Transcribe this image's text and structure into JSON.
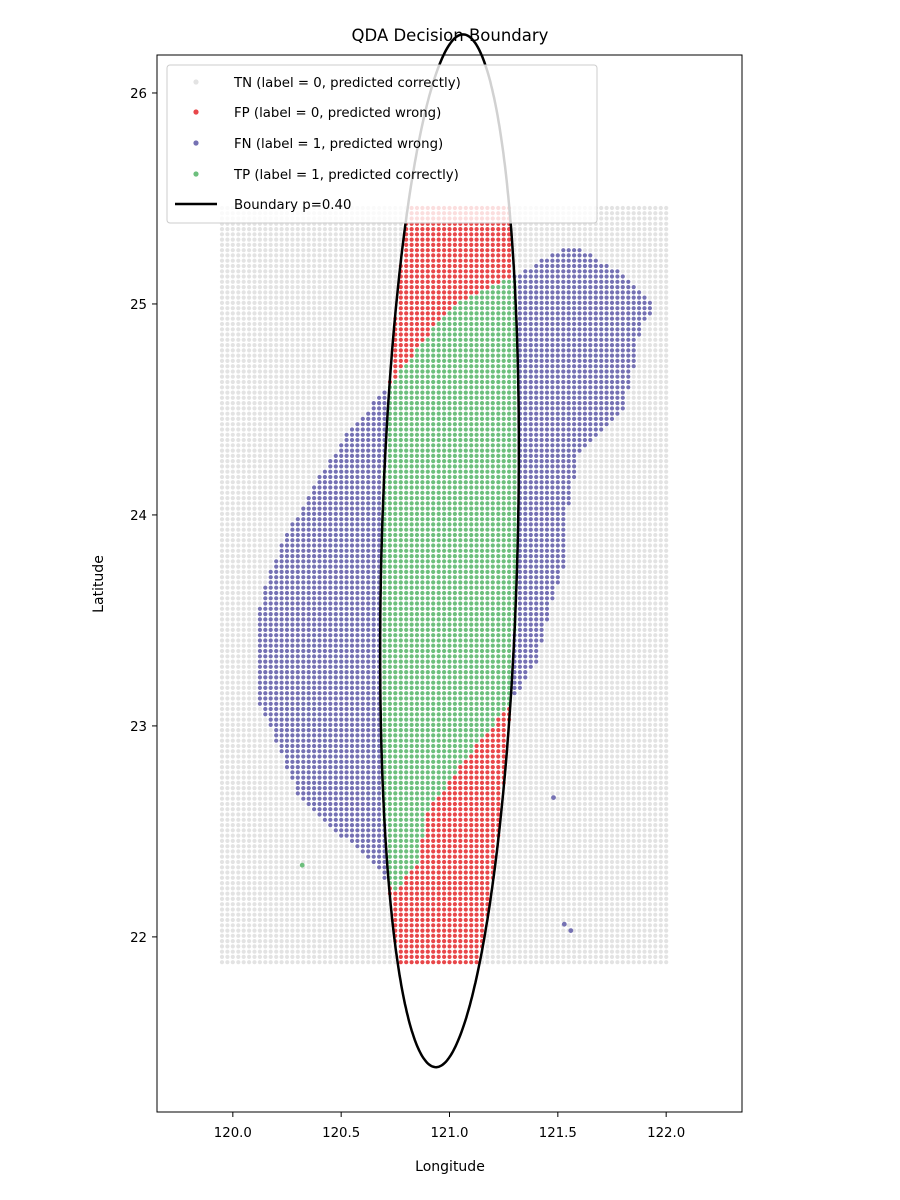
{
  "chart_data": {
    "type": "scatter",
    "title": "QDA Decision Boundary",
    "xlabel": "Longitude",
    "ylabel": "Latitude",
    "xlim": [
      119.65,
      122.35
    ],
    "ylim": [
      21.17,
      26.18
    ],
    "x_ticks": [
      120.0,
      120.5,
      121.0,
      121.5,
      122.0
    ],
    "x_tick_labels": [
      "120.0",
      "120.5",
      "121.0",
      "121.5",
      "122.0"
    ],
    "y_ticks": [
      22,
      23,
      24,
      25,
      26
    ],
    "y_tick_labels": [
      "22",
      "23",
      "24",
      "25",
      "26"
    ],
    "grid": false,
    "legend_placement": "upper-left",
    "grid_points": {
      "lon_range": [
        119.95,
        122.0
      ],
      "lat_range": [
        21.88,
        25.45
      ],
      "spacing": 0.025
    },
    "series": [
      {
        "key": "TN",
        "name": "TN (label = 0, predicted correctly)",
        "color": "#e3e3e3",
        "marker": "circle"
      },
      {
        "key": "FP",
        "name": "FP (label = 0, predicted wrong)",
        "color": "#e8474a",
        "marker": "circle"
      },
      {
        "key": "FN",
        "name": "FN (label = 1, predicted wrong)",
        "color": "#7571b3",
        "marker": "circle"
      },
      {
        "key": "TP",
        "name": "TP (label = 1, predicted correctly)",
        "color": "#6dbf7d",
        "marker": "circle"
      }
    ],
    "boundary": {
      "name": "Boundary p=0.40",
      "color": "#000000",
      "type": "ellipse",
      "center": [
        121.0,
        23.83
      ],
      "semi_axes": [
        0.32,
        2.4
      ],
      "tilt_y_per_lon": 1.5
    },
    "land_polygon": [
      [
        120.72,
        22.25
      ],
      [
        120.6,
        22.4
      ],
      [
        120.45,
        22.52
      ],
      [
        120.3,
        22.68
      ],
      [
        120.2,
        22.93
      ],
      [
        120.12,
        23.1
      ],
      [
        120.1,
        23.35
      ],
      [
        120.13,
        23.62
      ],
      [
        120.22,
        23.85
      ],
      [
        120.35,
        24.1
      ],
      [
        120.55,
        24.42
      ],
      [
        120.73,
        24.62
      ],
      [
        120.88,
        24.83
      ],
      [
        121.02,
        25.0
      ],
      [
        121.2,
        25.08
      ],
      [
        121.38,
        25.18
      ],
      [
        121.56,
        25.28
      ],
      [
        121.8,
        25.15
      ],
      [
        121.95,
        24.98
      ],
      [
        121.88,
        24.88
      ],
      [
        121.85,
        24.7
      ],
      [
        121.8,
        24.5
      ],
      [
        121.6,
        24.28
      ],
      [
        121.55,
        24.05
      ],
      [
        121.55,
        23.82
      ],
      [
        121.48,
        23.6
      ],
      [
        121.4,
        23.3
      ],
      [
        121.28,
        23.1
      ],
      [
        121.08,
        22.85
      ],
      [
        120.9,
        22.6
      ],
      [
        120.85,
        22.35
      ],
      [
        120.75,
        22.22
      ]
    ],
    "isolated_points": [
      {
        "lon": 121.48,
        "lat": 22.66,
        "class": "FN"
      },
      {
        "lon": 121.53,
        "lat": 22.06,
        "class": "FN"
      },
      {
        "lon": 121.56,
        "lat": 22.03,
        "class": "FN"
      },
      {
        "lon": 120.32,
        "lat": 22.34,
        "class": "TP"
      }
    ]
  }
}
